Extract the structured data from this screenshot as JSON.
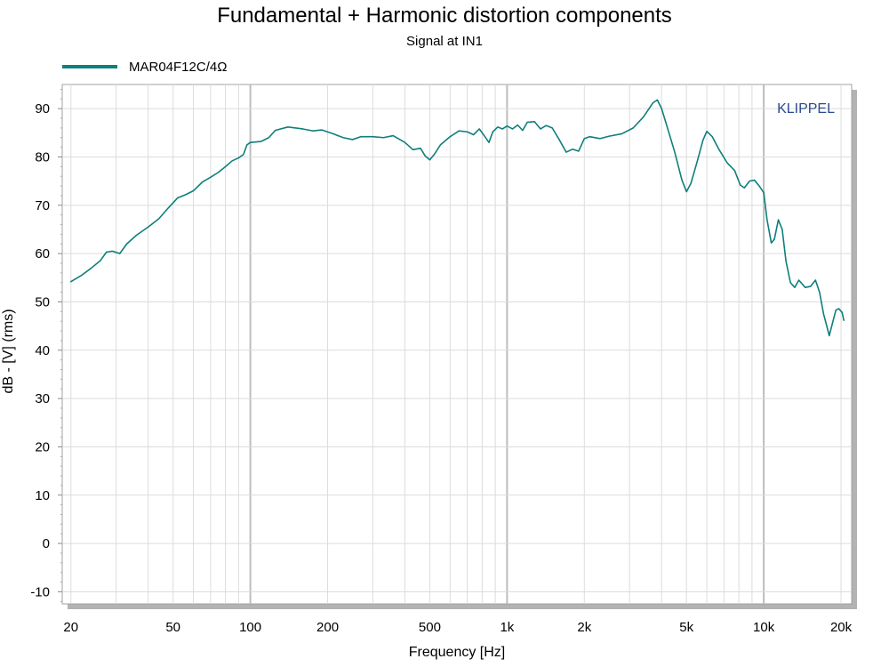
{
  "chart_data": {
    "type": "line",
    "title": "Fundamental + Harmonic distortion components",
    "subtitle": "Signal at IN1",
    "xlabel": "Frequency [Hz]",
    "ylabel": "dB - [V]  (rms)",
    "x_scale": "log",
    "xlim": [
      18.5,
      22000
    ],
    "ylim": [
      -12.5,
      95
    ],
    "grid": true,
    "legend_position": "top-left",
    "watermark": "KLIPPEL",
    "x_ticks": [
      {
        "value": 20,
        "label": "20"
      },
      {
        "value": 50,
        "label": "50"
      },
      {
        "value": 100,
        "label": "100"
      },
      {
        "value": 200,
        "label": "200"
      },
      {
        "value": 500,
        "label": "500"
      },
      {
        "value": 1000,
        "label": "1k"
      },
      {
        "value": 2000,
        "label": "2k"
      },
      {
        "value": 5000,
        "label": "5k"
      },
      {
        "value": 10000,
        "label": "10k"
      },
      {
        "value": 20000,
        "label": "20k"
      }
    ],
    "y_ticks": [
      {
        "value": 90,
        "label": "90"
      },
      {
        "value": 80,
        "label": "80"
      },
      {
        "value": 70,
        "label": "70"
      },
      {
        "value": 60,
        "label": "60"
      },
      {
        "value": 50,
        "label": "50"
      },
      {
        "value": 40,
        "label": "40"
      },
      {
        "value": 30,
        "label": "30"
      },
      {
        "value": 20,
        "label": "20"
      },
      {
        "value": 10,
        "label": "10"
      },
      {
        "value": 0,
        "label": "0"
      },
      {
        "value": -10,
        "label": "-10"
      }
    ],
    "series": [
      {
        "name": "MAR04F12C/4Ω",
        "color": "#0e7f7b",
        "points": [
          [
            20,
            54.2
          ],
          [
            22,
            55.5
          ],
          [
            24,
            57.0
          ],
          [
            26,
            58.5
          ],
          [
            27.5,
            60.3
          ],
          [
            29,
            60.5
          ],
          [
            31,
            60.0
          ],
          [
            33,
            62.0
          ],
          [
            36,
            63.8
          ],
          [
            40,
            65.5
          ],
          [
            44,
            67.2
          ],
          [
            48,
            69.5
          ],
          [
            52,
            71.5
          ],
          [
            56,
            72.2
          ],
          [
            60,
            73.0
          ],
          [
            65,
            74.8
          ],
          [
            70,
            75.8
          ],
          [
            75,
            76.8
          ],
          [
            80,
            78.0
          ],
          [
            85,
            79.2
          ],
          [
            90,
            79.8
          ],
          [
            94,
            80.5
          ],
          [
            97,
            82.5
          ],
          [
            100,
            83.0
          ],
          [
            110,
            83.2
          ],
          [
            118,
            84.0
          ],
          [
            125,
            85.5
          ],
          [
            140,
            86.2
          ],
          [
            160,
            85.8
          ],
          [
            175,
            85.4
          ],
          [
            190,
            85.6
          ],
          [
            210,
            84.8
          ],
          [
            230,
            84.0
          ],
          [
            250,
            83.6
          ],
          [
            270,
            84.2
          ],
          [
            300,
            84.2
          ],
          [
            330,
            84.0
          ],
          [
            360,
            84.4
          ],
          [
            400,
            83.0
          ],
          [
            430,
            81.5
          ],
          [
            460,
            81.8
          ],
          [
            480,
            80.2
          ],
          [
            500,
            79.4
          ],
          [
            520,
            80.5
          ],
          [
            550,
            82.5
          ],
          [
            600,
            84.2
          ],
          [
            650,
            85.4
          ],
          [
            700,
            85.2
          ],
          [
            740,
            84.6
          ],
          [
            780,
            85.8
          ],
          [
            820,
            84.2
          ],
          [
            850,
            83.0
          ],
          [
            880,
            85.2
          ],
          [
            920,
            86.2
          ],
          [
            960,
            85.8
          ],
          [
            1000,
            86.4
          ],
          [
            1050,
            85.8
          ],
          [
            1100,
            86.6
          ],
          [
            1150,
            85.5
          ],
          [
            1200,
            87.2
          ],
          [
            1280,
            87.3
          ],
          [
            1350,
            85.8
          ],
          [
            1420,
            86.5
          ],
          [
            1500,
            86.0
          ],
          [
            1600,
            83.5
          ],
          [
            1700,
            81.0
          ],
          [
            1800,
            81.6
          ],
          [
            1900,
            81.2
          ],
          [
            2000,
            83.8
          ],
          [
            2100,
            84.2
          ],
          [
            2300,
            83.8
          ],
          [
            2500,
            84.3
          ],
          [
            2800,
            84.8
          ],
          [
            3100,
            86.0
          ],
          [
            3400,
            88.3
          ],
          [
            3700,
            91.2
          ],
          [
            3850,
            91.8
          ],
          [
            4000,
            90.0
          ],
          [
            4200,
            86.3
          ],
          [
            4500,
            81.0
          ],
          [
            4800,
            75.2
          ],
          [
            5000,
            72.8
          ],
          [
            5200,
            74.5
          ],
          [
            5500,
            79.0
          ],
          [
            5800,
            83.5
          ],
          [
            6000,
            85.3
          ],
          [
            6300,
            84.2
          ],
          [
            6700,
            81.5
          ],
          [
            7200,
            78.8
          ],
          [
            7700,
            77.2
          ],
          [
            8100,
            74.2
          ],
          [
            8400,
            73.6
          ],
          [
            8800,
            75.0
          ],
          [
            9200,
            75.2
          ],
          [
            9600,
            74.0
          ],
          [
            10000,
            72.6
          ],
          [
            10300,
            67.0
          ],
          [
            10700,
            62.2
          ],
          [
            11000,
            63.0
          ],
          [
            11400,
            67.0
          ],
          [
            11800,
            65.0
          ],
          [
            12200,
            58.5
          ],
          [
            12700,
            54.0
          ],
          [
            13200,
            53.0
          ],
          [
            13700,
            54.5
          ],
          [
            14500,
            53.0
          ],
          [
            15200,
            53.2
          ],
          [
            15900,
            54.5
          ],
          [
            16500,
            52.0
          ],
          [
            17100,
            47.5
          ],
          [
            17600,
            45.0
          ],
          [
            18000,
            43.0
          ],
          [
            18500,
            45.5
          ],
          [
            19100,
            48.3
          ],
          [
            19600,
            48.6
          ],
          [
            20200,
            47.8
          ],
          [
            20500,
            46.2
          ]
        ]
      }
    ]
  }
}
